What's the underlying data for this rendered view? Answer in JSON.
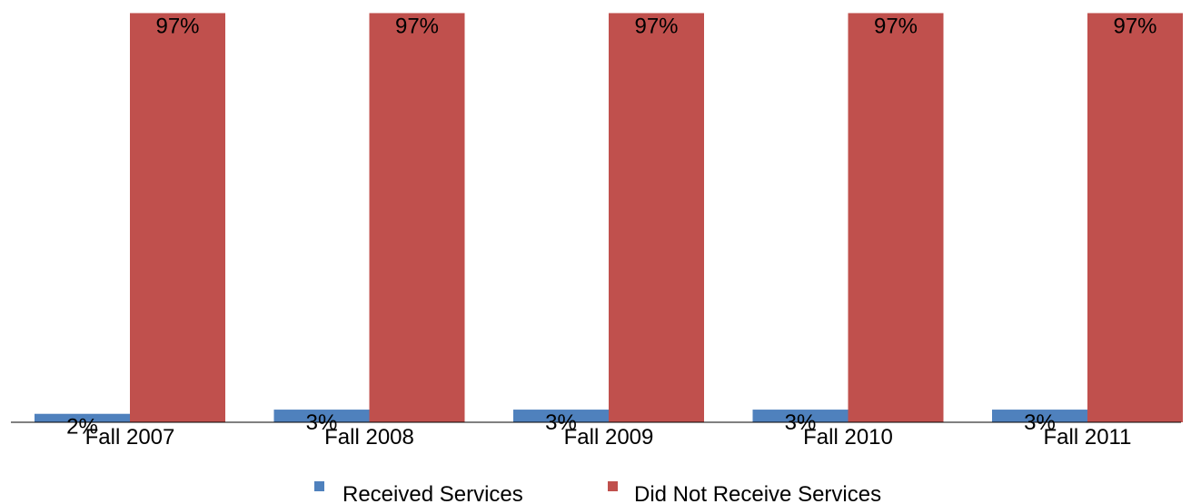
{
  "chart_data": {
    "type": "bar",
    "categories": [
      "Fall 2007",
      "Fall 2008",
      "Fall 2009",
      "Fall 2010",
      "Fall 2011"
    ],
    "series": [
      {
        "name": "Received Services",
        "color": "#4f81bd",
        "values": [
          2,
          3,
          3,
          3,
          3
        ],
        "labels": [
          "2%",
          "3%",
          "3%",
          "3%",
          "3%"
        ]
      },
      {
        "name": "Did Not Receive Services",
        "color": "#c0504d",
        "values": [
          97,
          97,
          97,
          97,
          97
        ],
        "labels": [
          "97%",
          "97%",
          "97%",
          "97%",
          "97%"
        ]
      }
    ],
    "ylim": [
      0,
      100
    ],
    "grid": false,
    "legend_position": "bottom"
  }
}
